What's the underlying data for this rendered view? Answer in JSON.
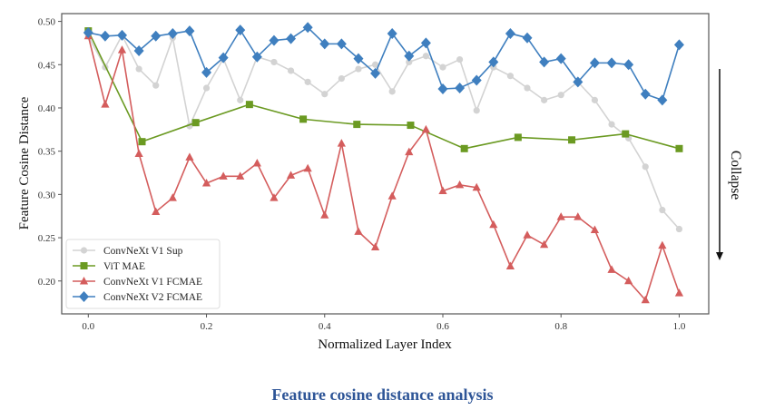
{
  "chart_data": {
    "type": "line",
    "title": "",
    "xlabel": "Normalized Layer Index",
    "ylabel": "Feature Cosine Distance",
    "xlim": [
      -0.045,
      1.05
    ],
    "ylim": [
      0.162,
      0.509
    ],
    "xticks": [
      0.0,
      0.2,
      0.4,
      0.6,
      0.8,
      1.0
    ],
    "xtick_labels": [
      "0.0",
      "0.2",
      "0.4",
      "0.6",
      "0.8",
      "1.0"
    ],
    "yticks": [
      0.2,
      0.25,
      0.3,
      0.35,
      0.4,
      0.45,
      0.5
    ],
    "ytick_labels": [
      "0.20",
      "0.25",
      "0.30",
      "0.35",
      "0.40",
      "0.45",
      "0.50"
    ],
    "grid": false,
    "legend_position": "bottom-left",
    "series": [
      {
        "name": "ConvNeXt V1 Sup",
        "color": "#d3d3d3",
        "marker": "circle",
        "num_points": 36,
        "values": [
          0.483,
          0.447,
          0.484,
          0.445,
          0.426,
          0.481,
          0.379,
          0.423,
          0.457,
          0.409,
          0.459,
          0.453,
          0.443,
          0.43,
          0.416,
          0.434,
          0.445,
          0.45,
          0.419,
          0.453,
          0.46,
          0.447,
          0.456,
          0.397,
          0.447,
          0.437,
          0.423,
          0.409,
          0.415,
          0.43,
          0.409,
          0.381,
          0.365,
          0.332,
          0.282,
          0.26
        ]
      },
      {
        "name": "ViT MAE",
        "color": "#6b9a22",
        "marker": "square",
        "num_points": 12,
        "values": [
          0.489,
          0.361,
          0.383,
          0.404,
          0.387,
          0.381,
          0.38,
          0.353,
          0.366,
          0.363,
          0.37,
          0.353
        ]
      },
      {
        "name": "ConvNeXt V1 FCMAE",
        "color": "#d45d5d",
        "marker": "triangle",
        "num_points": 36,
        "values": [
          0.483,
          0.404,
          0.467,
          0.347,
          0.28,
          0.296,
          0.343,
          0.313,
          0.321,
          0.321,
          0.336,
          0.296,
          0.322,
          0.33,
          0.276,
          0.359,
          0.257,
          0.239,
          0.298,
          0.349,
          0.375,
          0.304,
          0.311,
          0.308,
          0.265,
          0.217,
          0.253,
          0.242,
          0.274,
          0.274,
          0.259,
          0.213,
          0.2,
          0.178,
          0.241,
          0.186
        ]
      },
      {
        "name": "ConvNeXt V2 FCMAE",
        "color": "#3f7fbf",
        "marker": "diamond",
        "num_points": 36,
        "values": [
          0.487,
          0.483,
          0.484,
          0.466,
          0.483,
          0.486,
          0.489,
          0.441,
          0.458,
          0.49,
          0.459,
          0.478,
          0.48,
          0.493,
          0.474,
          0.474,
          0.457,
          0.44,
          0.486,
          0.46,
          0.475,
          0.422,
          0.423,
          0.432,
          0.453,
          0.486,
          0.481,
          0.453,
          0.457,
          0.43,
          0.452,
          0.452,
          0.45,
          0.416,
          0.409,
          0.473
        ]
      }
    ],
    "annotation": {
      "text": "Collapse",
      "arrow_direction": "down"
    }
  },
  "caption": {
    "text": "Feature cosine distance analysis",
    "color": "#2e5597"
  }
}
